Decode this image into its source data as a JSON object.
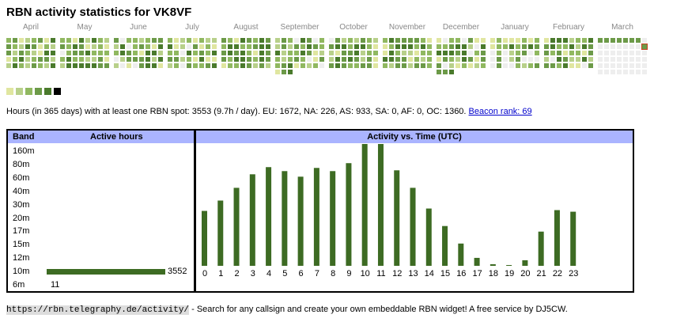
{
  "page": {
    "title": "RBN activity statistics for VK8VF"
  },
  "heatmap": {
    "months": [
      "April",
      "May",
      "June",
      "July",
      "August",
      "September",
      "October",
      "November",
      "December",
      "January",
      "February",
      "March"
    ],
    "palette": [
      "#eeeeee",
      "#e0e6a0",
      "#b8d08a",
      "#90b860",
      "#6c9a48",
      "#4a7a2c"
    ],
    "today_marker_color": "#c84020"
  },
  "legend": {
    "colors": [
      "#e0e6a0",
      "#b8d08a",
      "#90b860",
      "#6c9a48",
      "#4a7a2c",
      "#000000"
    ]
  },
  "summary": {
    "text": "Hours (in 365 days) with at least one RBN spot: 3553 (9.7h / day). EU: 1672, NA: 226, AS: 933, SA: 0, AF: 0, OC: 1360.",
    "link_text": "Beacon rank: 69"
  },
  "band_table": {
    "header_band": "Band",
    "header_hours": "Active hours",
    "bands": [
      {
        "name": "160m",
        "hours": null
      },
      {
        "name": "80m",
        "hours": null
      },
      {
        "name": "60m",
        "hours": null
      },
      {
        "name": "40m",
        "hours": null
      },
      {
        "name": "30m",
        "hours": null
      },
      {
        "name": "20m",
        "hours": null
      },
      {
        "name": "17m",
        "hours": null
      },
      {
        "name": "15m",
        "hours": null
      },
      {
        "name": "12m",
        "hours": null
      },
      {
        "name": "10m",
        "hours": 3552
      },
      {
        "name": "6m",
        "hours": 11
      }
    ],
    "bar_color": "#3d6b23"
  },
  "chart_data": {
    "type": "bar",
    "title": "Activity vs. Time (UTC)",
    "categories": [
      "0",
      "1",
      "2",
      "3",
      "4",
      "5",
      "6",
      "7",
      "8",
      "9",
      "10",
      "11",
      "12",
      "13",
      "14",
      "15",
      "16",
      "17",
      "18",
      "19",
      "20",
      "21",
      "22",
      "23"
    ],
    "series": [
      {
        "values": [
          69,
          82,
          98,
          115,
          124,
          119,
          112,
          123,
          119,
          129,
          162,
          160,
          120,
          98,
          72,
          50,
          28,
          10,
          2,
          1,
          7,
          43,
          70,
          68
        ]
      }
    ],
    "ylim": [
      0,
      165
    ],
    "bar_color": "#3d6b23",
    "top_color": "#c8d890"
  },
  "footer": {
    "url": "https://rbn.telegraphy.de/activity/",
    "text": " - Search for any callsign and create your own embeddable RBN widget! A free service by DJ5CW."
  }
}
